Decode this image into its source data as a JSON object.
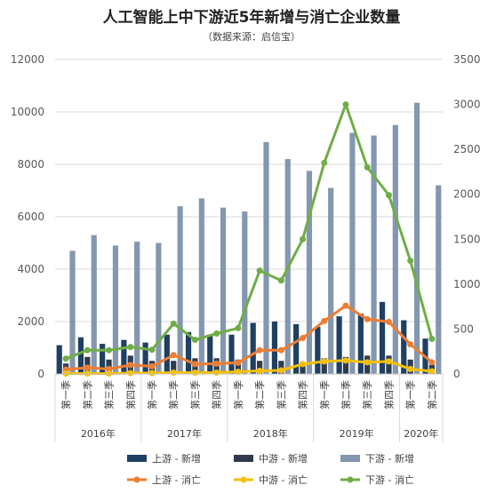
{
  "chart_data": {
    "type": "bar",
    "title": "人工智能上中下游近5年新增与消亡企业数量",
    "subtitle": "（数据来源：启信宝）",
    "categories": [
      "第一季",
      "第二季",
      "第三季",
      "第四季",
      "第一季",
      "第二季",
      "第三季",
      "第四季",
      "第一季",
      "第二季",
      "第三季",
      "第四季",
      "第一季",
      "第二季",
      "第三季",
      "第四季",
      "第一季",
      "第二季"
    ],
    "years": [
      {
        "label": "2016年",
        "count": 4
      },
      {
        "label": "2017年",
        "count": 4
      },
      {
        "label": "2018年",
        "count": 4
      },
      {
        "label": "2019年",
        "count": 4
      },
      {
        "label": "2020年",
        "count": 2
      }
    ],
    "y_left": {
      "min": 0,
      "max": 12000,
      "ticks": [
        "0",
        "2000",
        "4000",
        "6000",
        "8000",
        "10000",
        "12000"
      ]
    },
    "y_right": {
      "min": 0,
      "max": 3500,
      "ticks": [
        "0",
        "500",
        "1000",
        "1500",
        "2000",
        "2500",
        "3000",
        "3500"
      ]
    },
    "bar_series": [
      {
        "name": "上游 - 新增",
        "color": "#1f3f63",
        "values": [
          1100,
          1400,
          1150,
          1300,
          1200,
          1500,
          1600,
          1500,
          1500,
          1950,
          2000,
          1900,
          1800,
          2200,
          2300,
          2750,
          2050,
          1350
        ]
      },
      {
        "name": "中游 - 新增",
        "color": "#2f3b4c",
        "values": [
          400,
          650,
          550,
          700,
          500,
          500,
          600,
          600,
          550,
          500,
          500,
          450,
          600,
          650,
          700,
          700,
          550,
          350
        ]
      },
      {
        "name": "下游 - 新增",
        "color": "#8497b0",
        "values": [
          4700,
          5300,
          4900,
          5050,
          5000,
          6400,
          6700,
          6350,
          6200,
          8850,
          8200,
          7750,
          7100,
          9200,
          9100,
          9500,
          10350,
          7200
        ]
      }
    ],
    "line_series": [
      {
        "name": "上游 - 消亡",
        "color": "#ed7d31",
        "values": [
          50,
          70,
          55,
          100,
          85,
          210,
          110,
          115,
          125,
          265,
          265,
          400,
          590,
          760,
          610,
          580,
          330,
          130
        ]
      },
      {
        "name": "中游 - 消亡",
        "color": "#f5c000",
        "values": [
          5,
          5,
          5,
          10,
          10,
          15,
          15,
          15,
          25,
          35,
          40,
          110,
          140,
          150,
          130,
          140,
          55,
          30
        ]
      },
      {
        "name": "下游 - 消亡",
        "color": "#70ad47",
        "values": [
          170,
          265,
          265,
          300,
          270,
          560,
          380,
          450,
          510,
          1150,
          1040,
          1500,
          2350,
          3000,
          2300,
          1990,
          1260,
          390
        ]
      }
    ],
    "legend_position": "bottom",
    "grid": true
  }
}
